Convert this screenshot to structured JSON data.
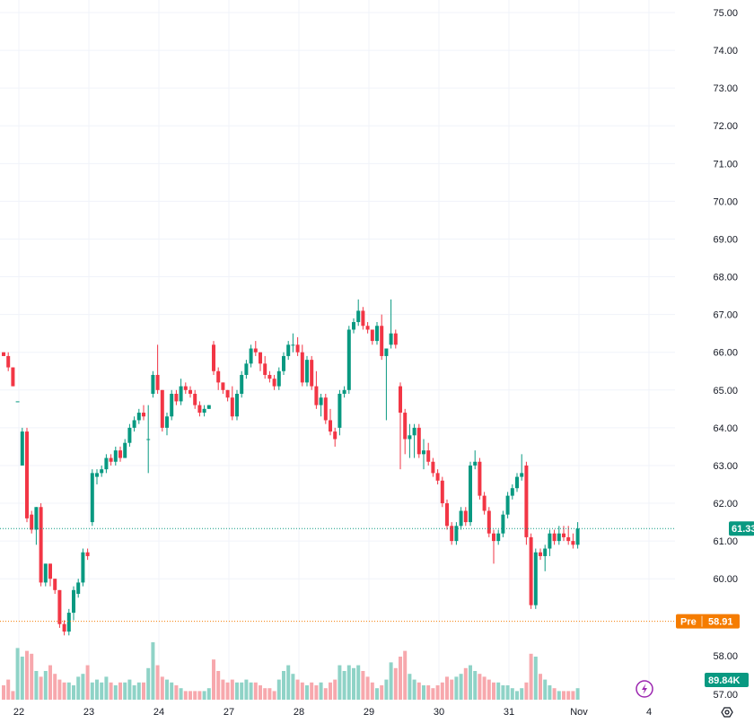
{
  "chart_data": {
    "type": "candlestick",
    "y_axis": {
      "min": 57.0,
      "max": 75.0,
      "ticks": [
        "75.00",
        "74.00",
        "73.00",
        "72.00",
        "71.00",
        "70.00",
        "69.00",
        "68.00",
        "67.00",
        "66.00",
        "65.00",
        "64.00",
        "63.00",
        "62.00",
        "61.00",
        "60.00",
        "58.00",
        "57.00"
      ],
      "tick_values": [
        75,
        74,
        73,
        72,
        71,
        70,
        69,
        68,
        67,
        66,
        65,
        64,
        63,
        62,
        61,
        60,
        58,
        57
      ]
    },
    "x_axis": {
      "labels": [
        "22",
        "23",
        "24",
        "27",
        "28",
        "29",
        "30",
        "31",
        "Nov",
        "4"
      ]
    },
    "last_price": {
      "value": 61.33,
      "label": "61.33",
      "color": "#089981"
    },
    "pre_market": {
      "tag": "Pre",
      "value": 58.91,
      "label": "58.91",
      "color": "#f57c00"
    },
    "volume_badge": {
      "label": "89.84K",
      "color": "#089981"
    },
    "colors": {
      "up": "#089981",
      "down": "#f23645",
      "up_volume": "#8fd3c7",
      "down_volume": "#f7a8ad",
      "grid": "#f0f3fa"
    },
    "grid": true,
    "candles": [
      [
        66.0,
        66.0,
        65.9,
        65.9
      ],
      [
        65.9,
        66.0,
        65.5,
        65.6
      ],
      [
        65.6,
        65.6,
        65.1,
        65.1
      ],
      [
        64.7,
        64.7,
        64.7,
        64.7
      ],
      [
        63.0,
        64.0,
        63.0,
        63.9
      ],
      [
        63.9,
        64.0,
        61.5,
        61.6
      ],
      [
        61.7,
        61.8,
        61.2,
        61.3
      ],
      [
        61.3,
        61.9,
        60.9,
        61.9
      ],
      [
        61.9,
        62.0,
        59.8,
        59.9
      ],
      [
        59.9,
        60.4,
        59.8,
        60.4
      ],
      [
        60.4,
        60.4,
        59.8,
        60.0
      ],
      [
        60.0,
        60.0,
        59.6,
        59.7
      ],
      [
        59.7,
        59.7,
        58.7,
        58.8
      ],
      [
        58.8,
        58.9,
        58.5,
        58.6
      ],
      [
        58.6,
        59.2,
        58.5,
        59.1
      ],
      [
        59.1,
        59.8,
        58.9,
        59.7
      ],
      [
        59.6,
        60.0,
        59.5,
        59.9
      ],
      [
        59.9,
        60.8,
        59.8,
        60.7
      ],
      [
        60.7,
        60.8,
        60.5,
        60.6
      ],
      [
        61.5,
        62.9,
        61.4,
        62.8
      ],
      [
        62.7,
        62.9,
        62.5,
        62.8
      ],
      [
        62.8,
        63.0,
        62.7,
        62.9
      ],
      [
        62.9,
        63.3,
        62.8,
        63.2
      ],
      [
        63.2,
        63.3,
        63.0,
        63.1
      ],
      [
        63.1,
        63.5,
        63.0,
        63.4
      ],
      [
        63.4,
        63.5,
        63.1,
        63.2
      ],
      [
        63.2,
        63.7,
        63.2,
        63.6
      ],
      [
        63.6,
        64.1,
        63.5,
        64.0
      ],
      [
        64.0,
        64.3,
        63.9,
        64.2
      ],
      [
        64.2,
        64.5,
        64.1,
        64.4
      ],
      [
        64.4,
        64.6,
        64.2,
        64.3
      ],
      [
        63.7,
        64.6,
        62.8,
        63.7
      ],
      [
        64.9,
        65.5,
        64.8,
        65.4
      ],
      [
        65.4,
        66.2,
        64.9,
        65.0
      ],
      [
        65.0,
        65.0,
        63.9,
        64.0
      ],
      [
        64.0,
        64.4,
        63.8,
        64.3
      ],
      [
        64.3,
        65.0,
        64.2,
        64.9
      ],
      [
        64.9,
        65.0,
        64.6,
        64.7
      ],
      [
        64.7,
        65.3,
        64.6,
        65.1
      ],
      [
        65.1,
        65.2,
        64.9,
        65.0
      ],
      [
        65.0,
        65.1,
        64.8,
        64.9
      ],
      [
        64.9,
        65.0,
        64.5,
        64.6
      ],
      [
        64.6,
        64.7,
        64.3,
        64.4
      ],
      [
        64.4,
        64.6,
        64.3,
        64.5
      ],
      [
        64.5,
        64.6,
        64.5,
        64.6
      ],
      [
        66.2,
        66.3,
        65.4,
        65.5
      ],
      [
        65.5,
        65.6,
        65.0,
        65.2
      ],
      [
        65.2,
        65.2,
        64.9,
        65.0
      ],
      [
        65.0,
        65.0,
        64.7,
        64.8
      ],
      [
        64.8,
        65.1,
        64.2,
        64.3
      ],
      [
        64.3,
        65.0,
        64.2,
        64.9
      ],
      [
        64.9,
        65.5,
        64.8,
        65.4
      ],
      [
        65.4,
        65.8,
        65.3,
        65.7
      ],
      [
        65.7,
        66.2,
        65.6,
        66.1
      ],
      [
        66.1,
        66.3,
        65.9,
        66.0
      ],
      [
        66.0,
        66.0,
        65.5,
        65.7
      ],
      [
        65.7,
        65.9,
        65.3,
        65.4
      ],
      [
        65.4,
        65.5,
        65.2,
        65.3
      ],
      [
        65.3,
        65.4,
        65.0,
        65.1
      ],
      [
        65.1,
        65.6,
        65.0,
        65.5
      ],
      [
        65.5,
        66.0,
        65.4,
        65.9
      ],
      [
        65.9,
        66.3,
        65.8,
        66.2
      ],
      [
        66.2,
        66.5,
        66.0,
        66.2
      ],
      [
        66.2,
        66.4,
        65.9,
        66.0
      ],
      [
        66.0,
        66.2,
        65.1,
        65.2
      ],
      [
        65.2,
        65.9,
        65.1,
        65.8
      ],
      [
        65.8,
        65.9,
        65.0,
        65.1
      ],
      [
        65.1,
        65.5,
        64.5,
        64.6
      ],
      [
        64.6,
        64.9,
        64.3,
        64.8
      ],
      [
        64.8,
        64.9,
        64.1,
        64.2
      ],
      [
        64.2,
        64.5,
        63.8,
        63.9
      ],
      [
        63.9,
        64.0,
        63.5,
        63.7
      ],
      [
        64.0,
        65.0,
        63.8,
        64.9
      ],
      [
        64.9,
        65.1,
        64.8,
        65.0
      ],
      [
        65.0,
        66.7,
        64.9,
        66.6
      ],
      [
        66.6,
        66.9,
        66.5,
        66.8
      ],
      [
        66.8,
        67.4,
        66.7,
        67.1
      ],
      [
        67.1,
        67.2,
        66.6,
        66.7
      ],
      [
        66.7,
        66.8,
        66.5,
        66.6
      ],
      [
        66.6,
        66.6,
        66.2,
        66.3
      ],
      [
        66.3,
        66.8,
        66.2,
        66.7
      ],
      [
        66.7,
        67.0,
        65.8,
        65.9
      ],
      [
        65.9,
        66.0,
        64.2,
        66.1
      ],
      [
        66.2,
        67.4,
        66.1,
        66.5
      ],
      [
        66.5,
        66.6,
        66.1,
        66.2
      ],
      [
        65.1,
        65.2,
        62.9,
        64.4
      ],
      [
        64.4,
        64.5,
        63.3,
        63.7
      ],
      [
        63.7,
        64.1,
        63.2,
        63.8
      ],
      [
        63.8,
        64.1,
        63.2,
        64.0
      ],
      [
        64.0,
        64.1,
        63.2,
        63.3
      ],
      [
        63.3,
        63.7,
        62.9,
        63.4
      ],
      [
        63.4,
        63.6,
        63.0,
        63.1
      ],
      [
        63.1,
        63.2,
        62.7,
        62.8
      ],
      [
        62.8,
        62.9,
        62.5,
        62.6
      ],
      [
        62.6,
        62.7,
        61.9,
        62.0
      ],
      [
        62.0,
        62.1,
        61.3,
        61.4
      ],
      [
        61.4,
        61.5,
        60.9,
        61.0
      ],
      [
        61.0,
        61.5,
        60.9,
        61.4
      ],
      [
        61.4,
        61.9,
        61.3,
        61.8
      ],
      [
        61.8,
        61.9,
        61.4,
        61.5
      ],
      [
        61.5,
        63.1,
        61.4,
        63.0
      ],
      [
        63.0,
        63.4,
        62.9,
        63.1
      ],
      [
        63.1,
        63.2,
        62.1,
        62.2
      ],
      [
        62.2,
        62.3,
        61.7,
        61.8
      ],
      [
        61.8,
        61.9,
        61.1,
        61.2
      ],
      [
        61.2,
        61.3,
        60.4,
        61.0
      ],
      [
        61.0,
        61.3,
        60.9,
        61.2
      ],
      [
        61.2,
        61.8,
        61.1,
        61.7
      ],
      [
        61.7,
        62.3,
        61.6,
        62.2
      ],
      [
        62.2,
        62.5,
        62.1,
        62.4
      ],
      [
        62.4,
        62.8,
        62.3,
        62.7
      ],
      [
        62.7,
        63.3,
        62.6,
        62.8
      ],
      [
        63.0,
        63.1,
        60.9,
        61.1
      ],
      [
        61.1,
        61.2,
        59.2,
        59.3
      ],
      [
        59.3,
        60.8,
        59.2,
        60.7
      ],
      [
        60.7,
        60.8,
        60.5,
        60.6
      ],
      [
        60.6,
        60.9,
        60.2,
        60.8
      ],
      [
        60.8,
        61.3,
        60.6,
        61.2
      ],
      [
        61.2,
        61.3,
        60.9,
        61.0
      ],
      [
        61.0,
        61.4,
        60.9,
        61.2
      ],
      [
        61.2,
        61.4,
        61.0,
        61.1
      ],
      [
        61.1,
        61.4,
        60.9,
        61.0
      ],
      [
        61.0,
        61.2,
        60.8,
        60.9
      ],
      [
        60.9,
        61.5,
        60.8,
        61.33
      ]
    ],
    "volumes": [
      0.25,
      0.35,
      0.15,
      0.9,
      0.75,
      0.85,
      0.8,
      0.5,
      0.4,
      0.5,
      0.6,
      0.45,
      0.35,
      0.3,
      0.3,
      0.25,
      0.4,
      0.45,
      0.6,
      0.3,
      0.35,
      0.3,
      0.4,
      0.3,
      0.25,
      0.3,
      0.3,
      0.35,
      0.25,
      0.3,
      0.3,
      0.55,
      1.0,
      0.6,
      0.4,
      0.35,
      0.3,
      0.25,
      0.2,
      0.15,
      0.15,
      0.15,
      0.15,
      0.15,
      0.2,
      0.7,
      0.5,
      0.35,
      0.3,
      0.35,
      0.3,
      0.3,
      0.35,
      0.3,
      0.3,
      0.25,
      0.2,
      0.2,
      0.15,
      0.35,
      0.5,
      0.6,
      0.45,
      0.35,
      0.3,
      0.25,
      0.3,
      0.25,
      0.3,
      0.2,
      0.3,
      0.35,
      0.6,
      0.5,
      0.6,
      0.55,
      0.6,
      0.5,
      0.4,
      0.3,
      0.2,
      0.25,
      0.35,
      0.65,
      0.55,
      0.75,
      0.85,
      0.45,
      0.35,
      0.3,
      0.25,
      0.25,
      0.2,
      0.25,
      0.3,
      0.4,
      0.35,
      0.4,
      0.45,
      0.55,
      0.6,
      0.5,
      0.45,
      0.4,
      0.35,
      0.3,
      0.3,
      0.25,
      0.25,
      0.2,
      0.15,
      0.2,
      0.3,
      0.8,
      0.75,
      0.45,
      0.35,
      0.25,
      0.2,
      0.15,
      0.15,
      0.15,
      0.15,
      0.2,
      0.2
    ]
  }
}
